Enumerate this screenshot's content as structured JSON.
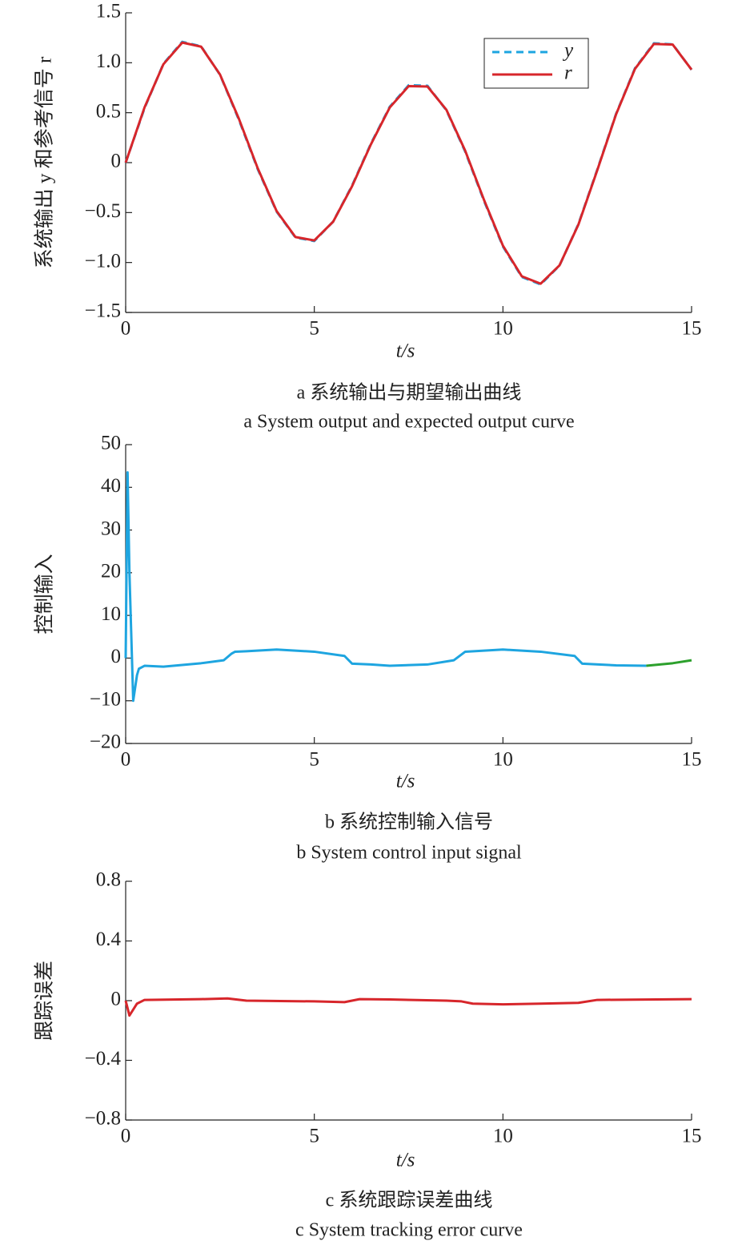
{
  "chart_data": [
    {
      "type": "line",
      "x": [
        0,
        0.5,
        1,
        1.5,
        2,
        2.5,
        3,
        3.5,
        4,
        4.5,
        5,
        5.5,
        6,
        6.5,
        7,
        7.5,
        8,
        8.5,
        9,
        9.5,
        10,
        10.5,
        11,
        11.5,
        12,
        12.5,
        13,
        13.5,
        14,
        14.5,
        15
      ],
      "series": [
        {
          "name": "y",
          "color": "#1ea5e0",
          "linestyle": "dashed",
          "values": [
            0,
            0.545,
            0.99,
            1.21,
            1.165,
            0.88,
            0.43,
            -0.065,
            -0.49,
            -0.75,
            -0.785,
            -0.59,
            -0.23,
            0.19,
            0.56,
            0.775,
            0.77,
            0.525,
            0.11,
            -0.385,
            -0.84,
            -1.145,
            -1.22,
            -1.03,
            -0.615,
            -0.07,
            0.49,
            0.945,
            1.195,
            1.185,
            0.93
          ]
        },
        {
          "name": "r",
          "color": "#d7262b",
          "linestyle": "solid",
          "values": [
            0,
            0.553,
            0.985,
            1.202,
            1.161,
            0.883,
            0.44,
            -0.056,
            -0.484,
            -0.745,
            -0.779,
            -0.591,
            -0.237,
            0.183,
            0.552,
            0.766,
            0.762,
            0.53,
            0.119,
            -0.375,
            -0.832,
            -1.138,
            -1.212,
            -1.028,
            -0.621,
            -0.076,
            0.485,
            0.939,
            1.188,
            1.182,
            0.931
          ]
        }
      ],
      "legend": "upper right",
      "xlim": [
        0,
        15
      ],
      "xticks": [
        0,
        5,
        10,
        15
      ],
      "ylim": [
        -1.5,
        1.5
      ],
      "yticks": [
        {
          "value": -1.5,
          "label": "−1.5"
        },
        {
          "value": -1.0,
          "label": "−1.0"
        },
        {
          "value": -0.5,
          "label": "−0.5"
        },
        0,
        0.5,
        {
          "value": 1.0,
          "label": "1.0"
        },
        1.5
      ],
      "xlabel": "t/s",
      "ylabel": "系统输出 y 和参考信号 r",
      "caption": [
        "a 系统输出与期望输出曲线",
        "a System output and expected output curve"
      ]
    },
    {
      "type": "line",
      "series": [
        {
          "color": "#1ea5e0",
          "x": [
            0,
            0.05,
            0.1,
            0.2,
            0.3,
            0.35,
            0.5,
            1,
            2,
            2.6,
            2.8,
            2.9,
            3.2,
            4,
            5,
            5.8,
            6,
            6.5,
            7,
            8,
            8.7,
            9,
            10,
            11,
            11.9,
            12.1,
            13,
            13.8
          ],
          "values": [
            0,
            43.5,
            20,
            -10,
            -4,
            -2.5,
            -1.8,
            -2,
            -1.2,
            -0.5,
            1,
            1.5,
            1.6,
            2,
            1.5,
            0.5,
            -1.3,
            -1.5,
            -1.8,
            -1.5,
            -0.5,
            1.5,
            2,
            1.5,
            0.5,
            -1.3,
            -1.7,
            -1.8
          ]
        },
        {
          "color": "#2ca02c",
          "x": [
            13.8,
            14.5,
            15
          ],
          "values": [
            -1.8,
            -1.2,
            -0.5
          ]
        }
      ],
      "xlim": [
        0,
        15
      ],
      "xticks": [
        0,
        5,
        10,
        15
      ],
      "ylim": [
        -20,
        50
      ],
      "yticks": [
        {
          "value": -20,
          "label": "−20"
        },
        {
          "value": -10,
          "label": "−10"
        },
        0,
        10,
        20,
        30,
        40,
        50
      ],
      "xlabel": "t/s",
      "ylabel": "控制输入",
      "caption": [
        "b 系统控制输入信号",
        "b System control input signal"
      ]
    },
    {
      "type": "line",
      "series": [
        {
          "color": "#d7262b",
          "x": [
            0,
            0.1,
            0.3,
            0.5,
            2,
            2.7,
            3.2,
            5,
            5.8,
            6.2,
            7,
            8.5,
            8.9,
            9.2,
            10,
            11,
            12,
            12.5,
            15
          ],
          "values": [
            0,
            -0.1,
            -0.02,
            0.005,
            0.01,
            0.015,
            0,
            -0.005,
            -0.01,
            0.01,
            0.008,
            0,
            -0.005,
            -0.02,
            -0.025,
            -0.02,
            -0.015,
            0.005,
            0.01
          ]
        }
      ],
      "xlim": [
        0,
        15
      ],
      "xticks": [
        0,
        5,
        10,
        15
      ],
      "ylim": [
        -0.8,
        0.8
      ],
      "yticks": [
        {
          "value": -0.8,
          "label": "−0.8"
        },
        {
          "value": -0.4,
          "label": "−0.4"
        },
        0,
        0.4,
        0.8
      ],
      "xlabel": "t/s",
      "ylabel": "跟踪误差",
      "caption": [
        "c 系统跟踪误差曲线",
        "c System tracking error curve"
      ]
    }
  ]
}
